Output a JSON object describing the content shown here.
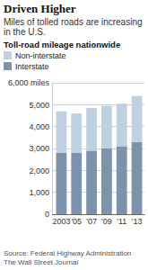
{
  "chart_data": {
    "type": "bar",
    "title": "Driven Higher",
    "subtitle": "Miles of tolled roads are increasing in the U.S.",
    "ylabel": "Toll-road mileage nationwide",
    "categories": [
      "2003",
      "'05",
      "'07",
      "'09",
      "'11",
      "'13"
    ],
    "series": [
      {
        "name": "Non-interstate",
        "color": "#c0d0e0",
        "values": [
          1900,
          1800,
          1950,
          1950,
          1950,
          2100
        ]
      },
      {
        "name": "Interstate",
        "color": "#7d93ab",
        "values": [
          2800,
          2800,
          2900,
          3000,
          3100,
          3300
        ]
      }
    ],
    "stacked": true,
    "ylim": [
      0,
      6000
    ],
    "yticks": [
      0,
      {
        "value": 1000,
        "label": "1,000"
      },
      {
        "value": 2000,
        "label": "2,000"
      },
      {
        "value": 3000,
        "label": "3,000"
      },
      {
        "value": 4000,
        "label": "4,000"
      },
      {
        "value": 5000,
        "label": "5,000"
      },
      {
        "value": 6000,
        "label": "6,000 miles"
      }
    ],
    "grid": true,
    "legend": "top-left",
    "source": "Source: Federal Highway Administration",
    "credit": "The Wall Street Journal"
  }
}
